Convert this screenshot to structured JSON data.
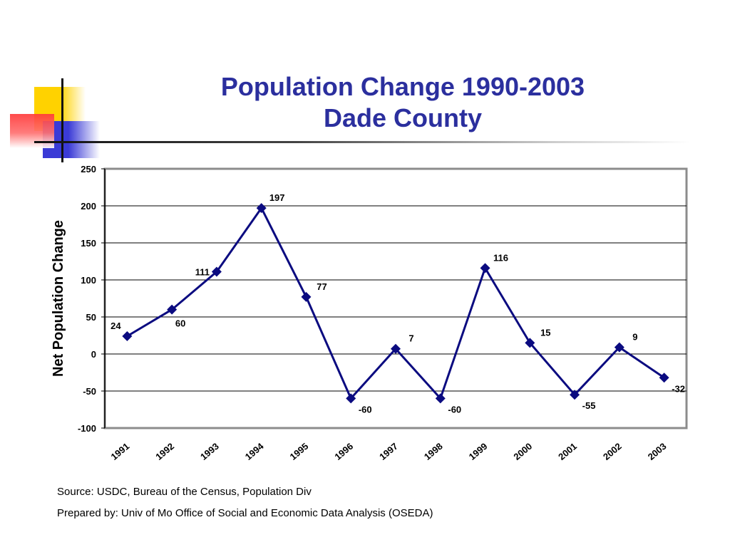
{
  "title": {
    "line1": "Population Change 1990-2003",
    "line2": "Dade County"
  },
  "colors": {
    "title": "#2b2f9e",
    "series": "#0b0b80",
    "accent_yellow": "#ffd200",
    "accent_red": "#ff3b3b",
    "accent_blue": "#3b3bd6"
  },
  "chart_data": {
    "type": "line",
    "title": "",
    "xlabel": "",
    "ylabel": "Net Population Change",
    "x": [
      "1991",
      "1992",
      "1993",
      "1994",
      "1995",
      "1996",
      "1997",
      "1998",
      "1999",
      "2000",
      "2001",
      "2002",
      "2003"
    ],
    "series": [
      {
        "values": [
          24,
          60,
          111,
          197,
          77,
          -60,
          7,
          -60,
          116,
          15,
          -55,
          9,
          -32
        ]
      }
    ],
    "ylim": [
      -100,
      250
    ],
    "yticks": [
      250,
      200,
      150,
      100,
      50,
      0,
      -50,
      -100
    ],
    "grid": true,
    "legend": "none",
    "marker": "diamond",
    "data_labels": true
  },
  "footer": {
    "source": "Source: USDC, Bureau of the Census, Population Div",
    "prepared_by": "Prepared by: Univ of Mo Office of Social and Economic Data Analysis (OSEDA)"
  }
}
